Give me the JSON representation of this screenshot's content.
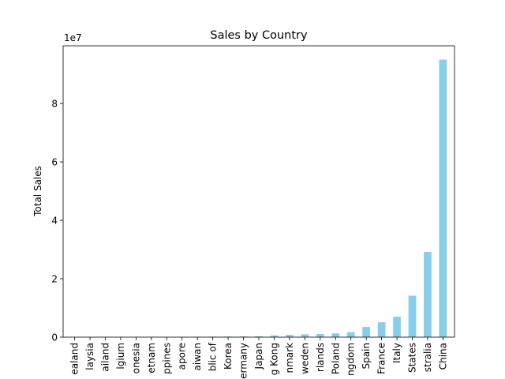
{
  "chart_data": {
    "type": "bar",
    "title": "Sales by Country",
    "xlabel": "",
    "ylabel": "Total Sales",
    "scale_label": "1e7",
    "ylim": [
      0,
      99750000
    ],
    "y_ticks": [
      0,
      20000000,
      40000000,
      60000000,
      80000000
    ],
    "y_tick_labels": [
      "0",
      "2",
      "4",
      "6",
      "8"
    ],
    "grid": false,
    "bar_color": "#87ceeb",
    "categories": [
      "New Zealand",
      "Malaysia",
      "Thailand",
      "Belgium",
      "Indonesia",
      "Vietnam",
      "Philippines",
      "Singapore",
      "Taiwan",
      "Korea, Republic of",
      "Korea",
      "Germany",
      "Japan",
      "Hong Kong",
      "Denmark",
      "Sweden",
      "Netherlands",
      "Poland",
      "United Kingdom",
      "Spain",
      "France",
      "Italy",
      "United States",
      "Australia",
      "China"
    ],
    "tick_labels": [
      "ealand",
      "laysia",
      "ailand",
      "lgium",
      "onesia",
      "etnam",
      "ppines",
      "apore",
      "aiwan",
      "blic of",
      "Korea",
      "ermany",
      "Japan",
      "g Kong",
      "nmark",
      "weden",
      "rlands",
      "Poland",
      "ngdom",
      "Spain",
      "France",
      "Italy",
      "States",
      "stralia",
      "China"
    ],
    "values": [
      20000,
      30000,
      40000,
      50000,
      60000,
      80000,
      100000,
      120000,
      150000,
      180000,
      200000,
      250000,
      300000,
      600000,
      800000,
      1000000,
      1100000,
      1300000,
      1700000,
      3500000,
      5100000,
      7000000,
      14200000,
      29200000,
      95000000
    ]
  }
}
